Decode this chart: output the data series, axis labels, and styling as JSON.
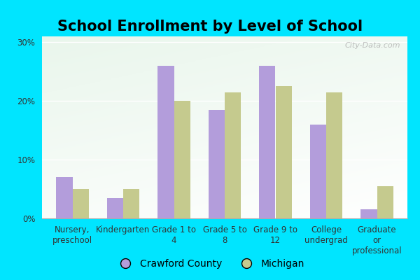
{
  "title": "School Enrollment by Level of School",
  "categories": [
    "Nursery,\npreschool",
    "Kindergarten",
    "Grade 1 to\n4",
    "Grade 5 to\n8",
    "Grade 9 to\n12",
    "College\nundergrad",
    "Graduate\nor\nprofessional"
  ],
  "crawford_values": [
    7.0,
    3.5,
    26.0,
    18.5,
    26.0,
    16.0,
    1.5
  ],
  "michigan_values": [
    5.0,
    5.0,
    20.0,
    21.5,
    22.5,
    21.5,
    5.5
  ],
  "crawford_color": "#b39ddb",
  "michigan_color": "#c5ca8e",
  "background_outer": "#00e5ff",
  "background_top": "#f5fff5",
  "background_bottom": "#c8e6c9",
  "ylabel_ticks": [
    0,
    10,
    20,
    30
  ],
  "ytick_labels": [
    "0%",
    "10%",
    "20%",
    "30%"
  ],
  "ylim": [
    0,
    31
  ],
  "legend_labels": [
    "Crawford County",
    "Michigan"
  ],
  "watermark": "City-Data.com",
  "title_fontsize": 15,
  "tick_fontsize": 8.5,
  "legend_fontsize": 10,
  "bar_width": 0.32
}
